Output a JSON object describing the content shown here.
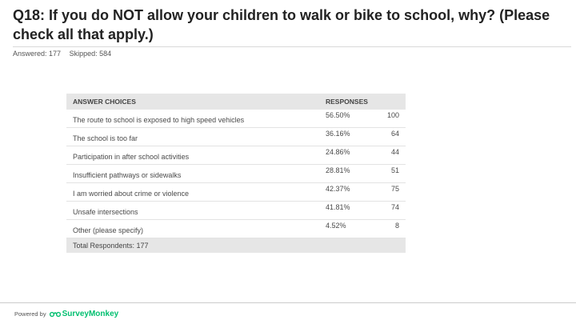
{
  "header": {
    "title": "Q18: If you do NOT allow your children to walk or bike to school, why? (Please check all that apply.)",
    "answered": "Answered: 177",
    "skipped": "Skipped: 584"
  },
  "table": {
    "headers": {
      "choice": "ANSWER CHOICES",
      "responses": "RESPONSES"
    },
    "rows": [
      {
        "choice": "The route to school is exposed to high speed vehicles",
        "percent": "56.50%",
        "count": "100"
      },
      {
        "choice": "The school is too far",
        "percent": "36.16%",
        "count": "64"
      },
      {
        "choice": "Participation in after school activities",
        "percent": "24.86%",
        "count": "44"
      },
      {
        "choice": "Insufficient pathways or sidewalks",
        "percent": "28.81%",
        "count": "51"
      },
      {
        "choice": "I am worried about crime or violence",
        "percent": "42.37%",
        "count": "75"
      },
      {
        "choice": "Unsafe intersections",
        "percent": "41.81%",
        "count": "74"
      },
      {
        "choice": "Other (please specify)",
        "percent": "4.52%",
        "count": "8"
      }
    ],
    "total": "Total Respondents: 177"
  },
  "footer": {
    "powered_by": "Powered by",
    "brand": "SurveyMonkey",
    "brand_color": "#00bf6f"
  }
}
